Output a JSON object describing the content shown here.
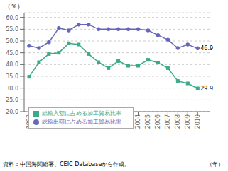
{
  "chart_data": {
    "type": "line",
    "x": [
      1993,
      1994,
      1995,
      1996,
      1997,
      1998,
      1999,
      2000,
      2001,
      2002,
      2003,
      2004,
      2005,
      2006,
      2007,
      2008,
      2009,
      2010
    ],
    "series": [
      {
        "name": "総輸出額に占める加工貿易比率",
        "color": "#6666bb",
        "marker": "circle",
        "values": [
          48.0,
          47.0,
          49.5,
          55.5,
          54.5,
          57.0,
          57.0,
          55.0,
          55.0,
          55.0,
          55.0,
          55.0,
          54.5,
          52.5,
          50.5,
          47.0,
          48.5,
          46.9
        ]
      },
      {
        "name": "総輸入額に占める加工貿易比率",
        "color": "#3aaa88",
        "marker": "square",
        "values": [
          34.8,
          41.0,
          44.5,
          45.0,
          49.0,
          48.5,
          44.5,
          41.0,
          38.5,
          41.5,
          39.5,
          39.5,
          42.0,
          40.8,
          38.5,
          33.0,
          32.0,
          29.9
        ]
      }
    ],
    "xlim": [
      1992.5,
      2011.2
    ],
    "xticks": [
      1993,
      1994,
      1995,
      1996,
      1997,
      1998,
      1999,
      2000,
      2001,
      2002,
      2003,
      2004,
      2005,
      2006,
      2007,
      2008,
      2009,
      2010
    ],
    "ylim": [
      20.0,
      62.0
    ],
    "yticks": [
      {
        "value": 20.0,
        "label": "20.0"
      },
      {
        "value": 25.0,
        "label": "25.0"
      },
      {
        "value": 30.0,
        "label": "30.0"
      },
      {
        "value": 35.0,
        "label": "35.0"
      },
      {
        "value": 40.0,
        "label": "40.0"
      },
      {
        "value": 45.0,
        "label": "45.0"
      },
      {
        "value": 50.0,
        "label": "50.0"
      },
      {
        "value": 55.0,
        "label": "55.0"
      },
      {
        "value": 60.0,
        "label": "60.0"
      }
    ],
    "ylabel": "（％）",
    "xlabel": "（年）",
    "source": "資料：中国海関総署、CEIC Databaseから作成。",
    "annotations": [
      {
        "text": "46.9",
        "x": 2010,
        "y": 46.9
      },
      {
        "text": "29.9",
        "x": 2010,
        "y": 29.9
      }
    ],
    "grid": true,
    "legend": "lower left"
  }
}
